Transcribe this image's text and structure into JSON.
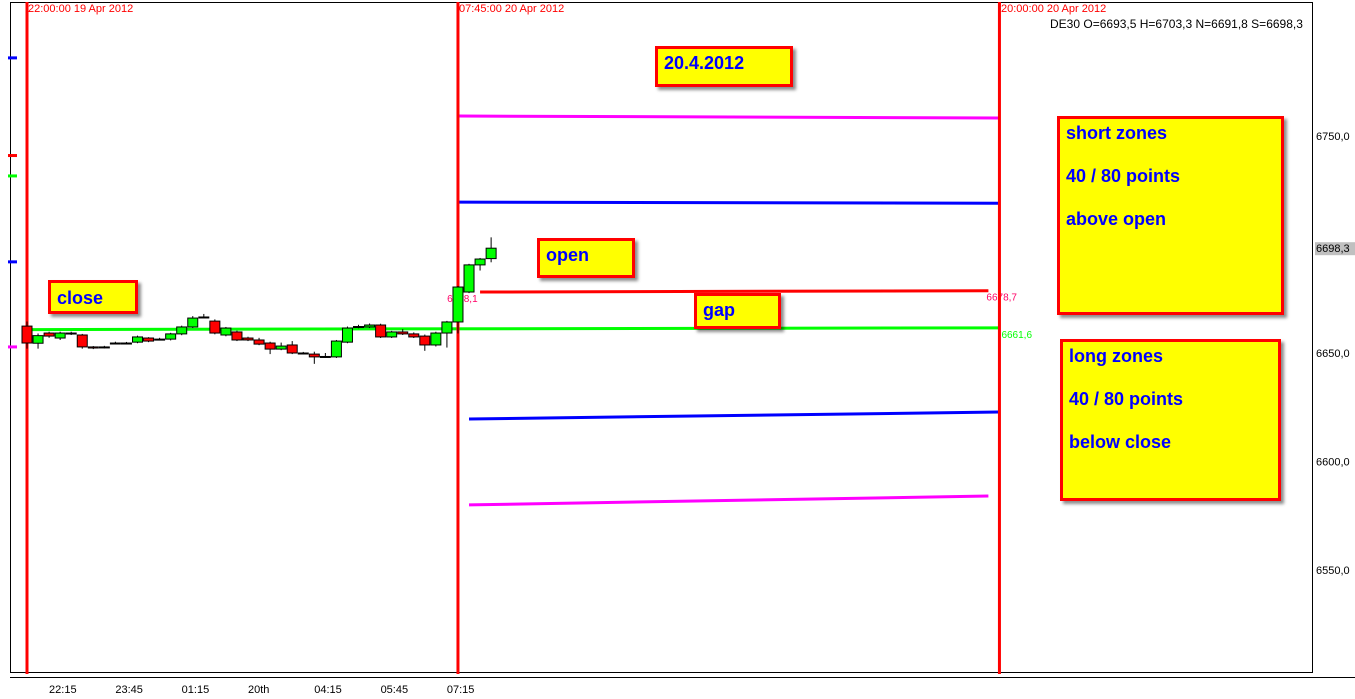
{
  "header": {
    "symbol": "DE30",
    "ohlc": "O=6693,5 H=6703,3 N=6691,8 S=6698,3"
  },
  "annotations": {
    "date": "20.4.2012",
    "close": "close",
    "open": "open",
    "gap": "gap",
    "short_zones": [
      "short zones",
      "40 / 80 points",
      "above open"
    ],
    "long_zones": [
      "long zones",
      "40 / 80 points",
      "below close"
    ]
  },
  "colors": {
    "up": "#00ff00",
    "down": "#ff0000",
    "vline": "#ff0000",
    "magenta": "#ff00ff",
    "blue": "#0000ff",
    "red": "#ff0000",
    "green": "#00ff00"
  },
  "chart_data": {
    "type": "candlestick",
    "ylim": [
      6502.5,
      6811.7
    ],
    "yticks": [
      {
        "value": 6750,
        "label": "6750,0"
      },
      {
        "value": 6650,
        "label": "6650,0"
      },
      {
        "value": 6600,
        "label": "6600,0"
      },
      {
        "value": 6550,
        "label": "6550,0"
      }
    ],
    "last_price": {
      "value": 6698.3,
      "label": "6698,3"
    },
    "xticks": [
      {
        "t": 15,
        "label": "22:15"
      },
      {
        "t": 105,
        "label": "23:45"
      },
      {
        "t": 195,
        "label": "01:15"
      },
      {
        "t": 285,
        "label": "20th"
      },
      {
        "t": 375,
        "label": "04:15"
      },
      {
        "t": 465,
        "label": "05:45"
      },
      {
        "t": 555,
        "label": "07:15"
      }
    ],
    "time_unit": "minutes after 22:00 19 Apr 2012",
    "vertical_lines": [
      {
        "t": 0,
        "label": "22:00:00 19 Apr 2012"
      },
      {
        "t": 585,
        "label": "07:45:00 20 Apr 2012"
      },
      {
        "t": 1320,
        "label": "20:00:00 20 Apr 2012"
      }
    ],
    "candles_interval_min": 15,
    "candles": [
      [
        6662.4,
        6664.5,
        6652.0,
        6654.6
      ],
      [
        6654.5,
        6659.0,
        6652.0,
        6658.0
      ],
      [
        6659.2,
        6659.8,
        6657.0,
        6657.8
      ],
      [
        6656.9,
        6659.8,
        6656.0,
        6659.2
      ],
      [
        6659.2,
        6659.8,
        6658.3,
        6658.8
      ],
      [
        6658.3,
        6658.8,
        6652.0,
        6652.8
      ],
      [
        6652.8,
        6653.2,
        6651.8,
        6652.3
      ],
      [
        6652.8,
        6653.3,
        6652.1,
        6652.6
      ],
      [
        6654.6,
        6655.2,
        6654.0,
        6654.4
      ],
      [
        6654.6,
        6655.1,
        6654.0,
        6654.4
      ],
      [
        6655.0,
        6658.0,
        6654.5,
        6657.4
      ],
      [
        6656.9,
        6657.3,
        6655.0,
        6655.5
      ],
      [
        6656.4,
        6657.0,
        6655.9,
        6656.3
      ],
      [
        6656.4,
        6659.3,
        6655.8,
        6658.8
      ],
      [
        6658.8,
        6662.6,
        6658.2,
        6662.0
      ],
      [
        6662.0,
        6667.0,
        6661.5,
        6666.1
      ],
      [
        6666.6,
        6668.0,
        6666.0,
        6666.4
      ],
      [
        6664.7,
        6665.5,
        6658.6,
        6659.2
      ],
      [
        6658.3,
        6662.0,
        6657.7,
        6661.5
      ],
      [
        6659.7,
        6660.3,
        6655.5,
        6656.0
      ],
      [
        6656.9,
        6657.5,
        6655.5,
        6656.0
      ],
      [
        6656.0,
        6657.0,
        6653.6,
        6654.1
      ],
      [
        6654.6,
        6655.2,
        6649.5,
        6651.8
      ],
      [
        6651.8,
        6654.8,
        6651.3,
        6653.2
      ],
      [
        6653.7,
        6655.5,
        6649.5,
        6650.0
      ],
      [
        6650.0,
        6650.5,
        6649.3,
        6649.8
      ],
      [
        6649.5,
        6650.6,
        6645.0,
        6648.2
      ],
      [
        6648.2,
        6650.0,
        6647.8,
        6648.4
      ],
      [
        6648.2,
        6656.0,
        6647.7,
        6655.5
      ],
      [
        6655.0,
        6662.2,
        6654.5,
        6661.5
      ],
      [
        6662.0,
        6663.0,
        6661.4,
        6662.2
      ],
      [
        6662.0,
        6663.6,
        6661.5,
        6662.9
      ],
      [
        6662.9,
        6663.5,
        6656.9,
        6657.4
      ],
      [
        6657.4,
        6660.2,
        6656.9,
        6659.7
      ],
      [
        6659.7,
        6661.0,
        6658.3,
        6658.8
      ],
      [
        6658.8,
        6659.5,
        6656.9,
        6657.4
      ],
      [
        6657.8,
        6658.5,
        6651.0,
        6653.7
      ],
      [
        6653.7,
        6659.8,
        6653.0,
        6659.2
      ],
      [
        6659.2,
        6664.8,
        6652.5,
        6664.3
      ],
      [
        6664.3,
        6680.9,
        6659.0,
        6680.4
      ],
      [
        6678.1,
        6691.1,
        6677.6,
        6690.6
      ],
      [
        6690.6,
        6693.8,
        6688.0,
        6693.3
      ],
      [
        6693.5,
        6703.3,
        6691.8,
        6698.3
      ]
    ],
    "levels": [
      {
        "name": "upper-magenta-level",
        "color": "magenta",
        "t0": 585,
        "t1": 1320,
        "v0": 6759.2,
        "v1": 6758.3
      },
      {
        "name": "upper-blue-level",
        "color": "blue",
        "t0": 585,
        "t1": 1320,
        "v0": 6719.5,
        "v1": 6719.0
      },
      {
        "name": "open-level",
        "color": "red",
        "t0": 615,
        "t1": 1305,
        "v0": 6678.1,
        "v1": 6678.7,
        "label0": "6678,1",
        "label1": "6678,7"
      },
      {
        "name": "close-level",
        "color": "green",
        "t0": 5,
        "t1": 1320,
        "v0": 6660.8,
        "v1": 6661.6,
        "label1": "6661,6"
      },
      {
        "name": "lower-blue-level",
        "color": "blue",
        "t0": 600,
        "t1": 1320,
        "v0": 6619.6,
        "v1": 6622.8
      },
      {
        "name": "lower-magenta-level",
        "color": "magenta",
        "t0": 600,
        "t1": 1305,
        "v0": 6580.0,
        "v1": 6584.1
      }
    ],
    "axis_markers": [
      {
        "color": "blue",
        "value": 6786
      },
      {
        "color": "red",
        "value": 6741
      },
      {
        "color": "green",
        "value": 6731.6
      },
      {
        "color": "blue",
        "value": 6692
      },
      {
        "color": "magenta",
        "value": 6652.8
      }
    ]
  }
}
